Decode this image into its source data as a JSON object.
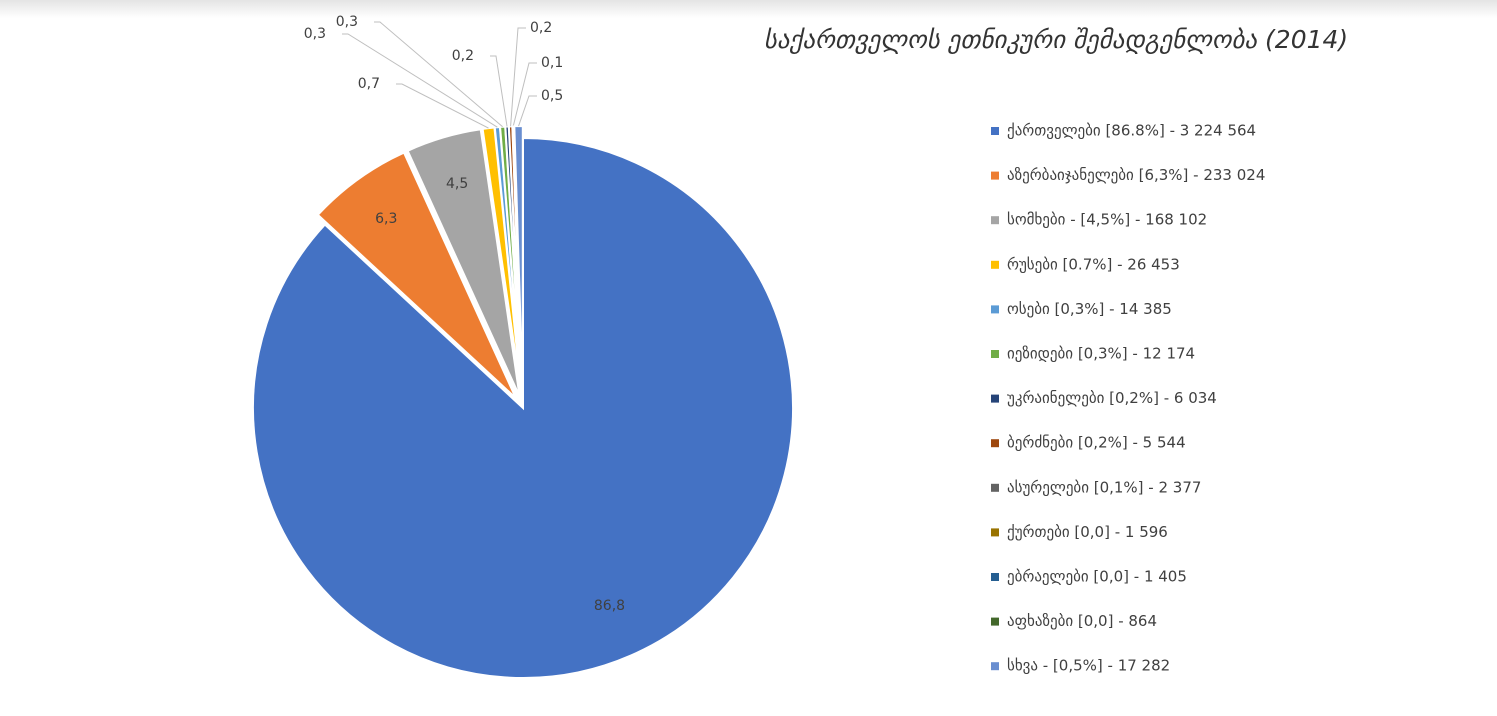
{
  "chart_data": {
    "type": "pie",
    "title": "საქართველოს ეთნიკური შემადგენლობა (2014)",
    "categories": [
      "ქართველები [86.8%] - 3 224 564",
      "აზერბაიჯანელები [6,3%] - 233 024",
      "სომხები - [4,5%] - 168 102",
      "რუსები [0.7%] - 26 453",
      "ოსები [0,3%] - 14 385",
      "იეზიდები [0,3%] - 12 174",
      "უკრაინელები [0,2%] - 6 034",
      "ბერძნები [0,2%] - 5 544",
      "ასურელები [0,1%] -  2 377",
      "ქურთები [0,0] - 1 596",
      "ებრაელები [0,0] - 1 405",
      "აფხაზები [0,0] - 864",
      "სხვა - [0,5%] - 17 282"
    ],
    "values": [
      86.8,
      6.3,
      4.5,
      0.7,
      0.3,
      0.3,
      0.2,
      0.2,
      0.1,
      0.0,
      0.0,
      0.0,
      0.5
    ],
    "value_labels": [
      "86,8",
      "6,3",
      "4,5",
      "0,7",
      "0,3",
      "0,3",
      "0,2",
      "0,2",
      "0,1",
      null,
      null,
      null,
      "0,5"
    ],
    "colors": [
      "#4472c4",
      "#ed7d31",
      "#a5a5a5",
      "#ffc000",
      "#5b9bd5",
      "#70ad47",
      "#264478",
      "#9e480e",
      "#636363",
      "#997300",
      "#255e91",
      "#43682b",
      "#698ed0"
    ],
    "legend": "right"
  }
}
